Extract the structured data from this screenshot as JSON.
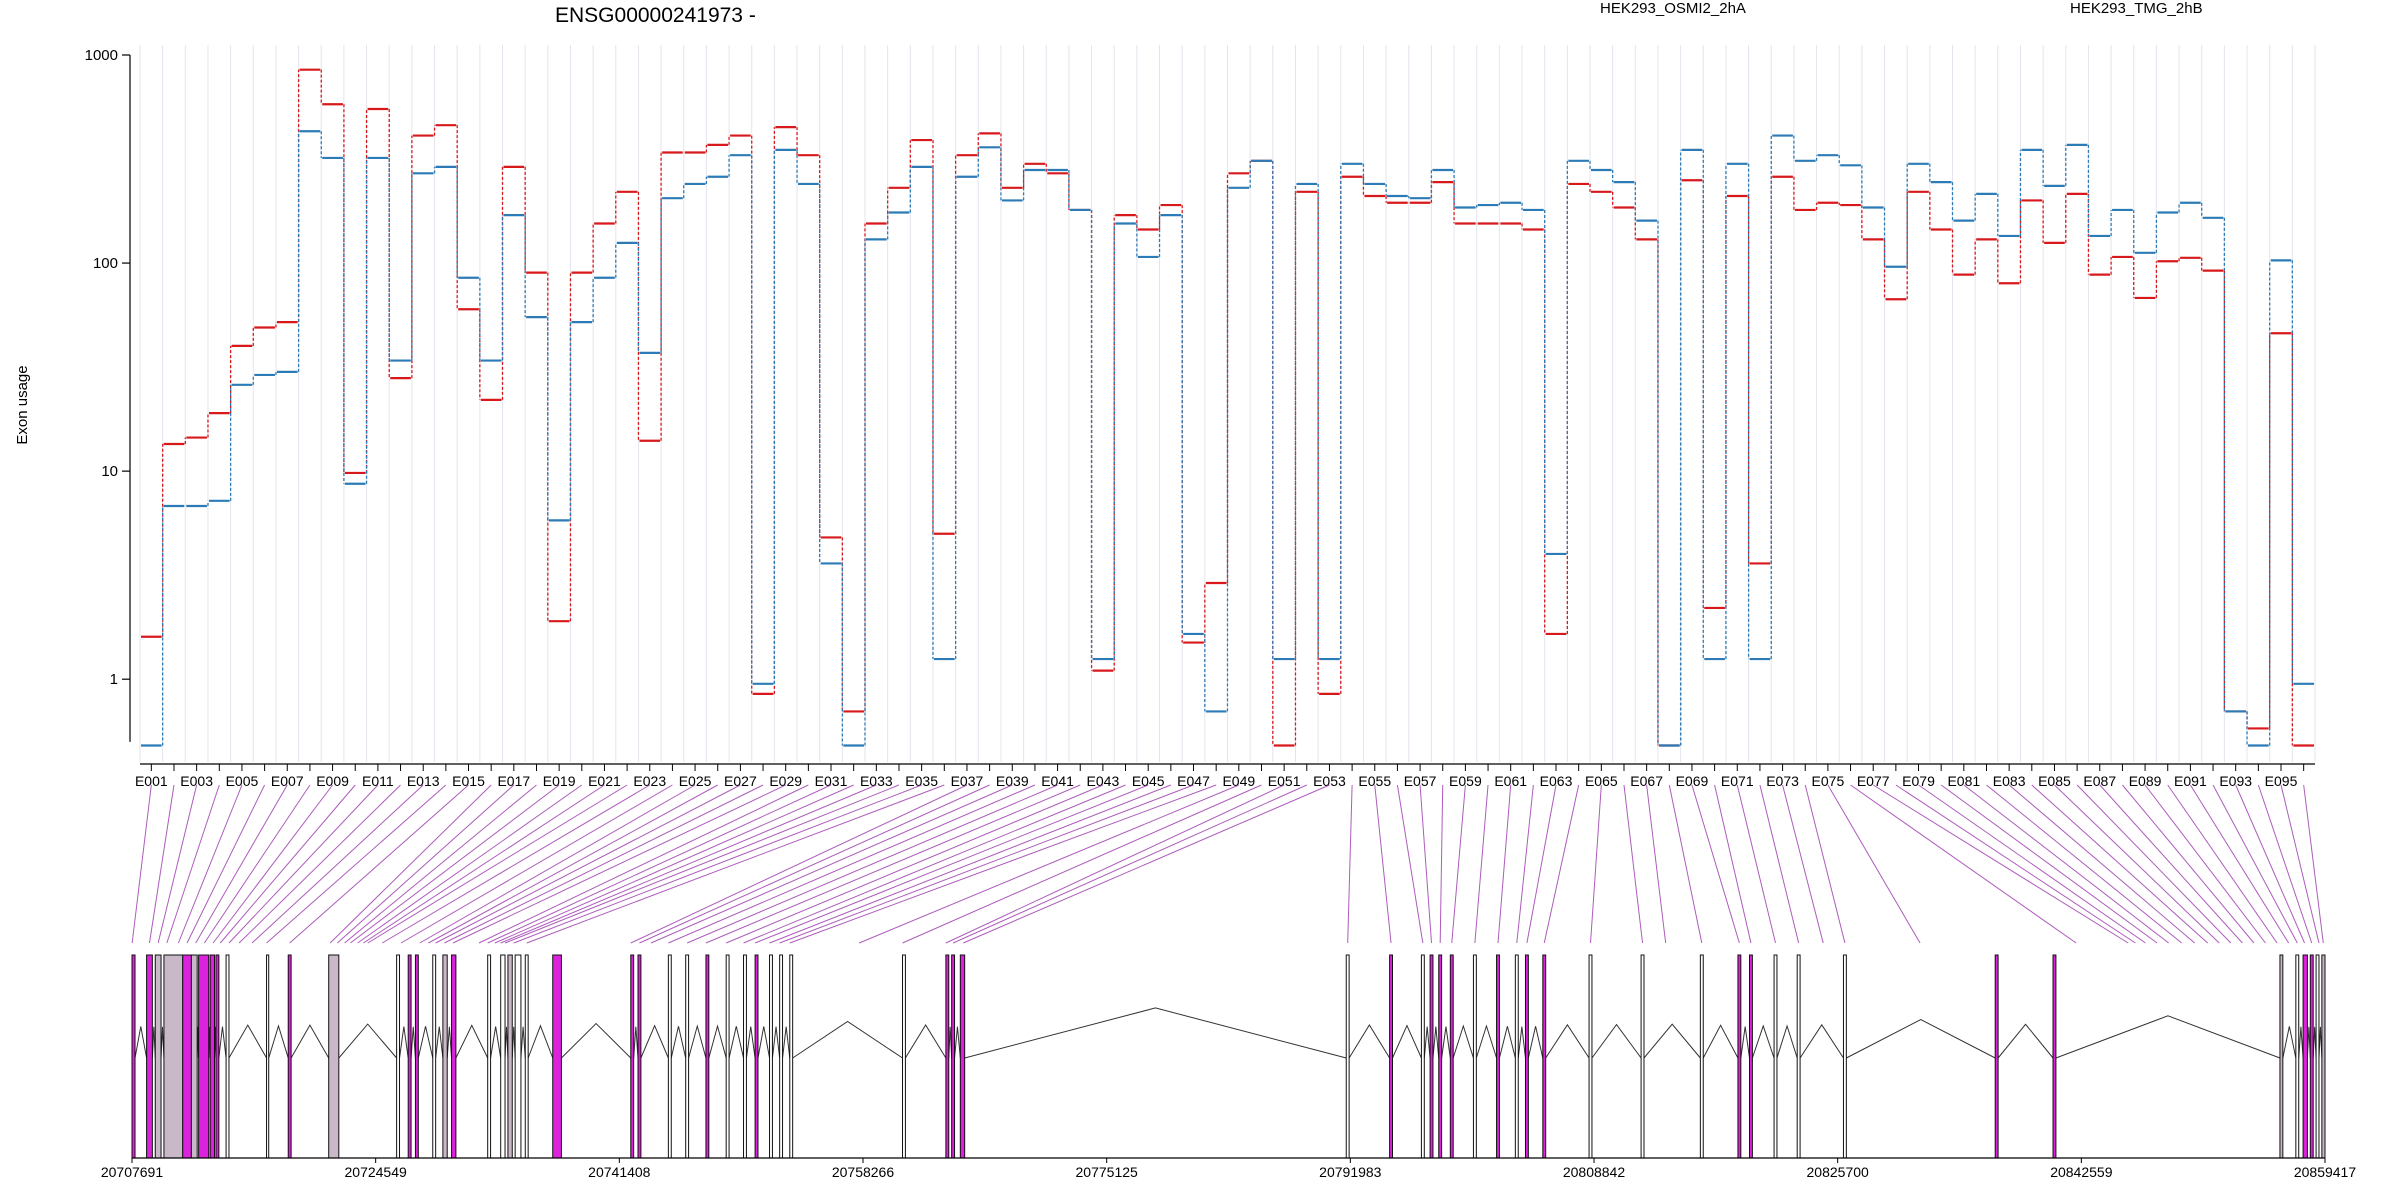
{
  "chart_data": {
    "type": "line",
    "title": "ENSG00000241973 -",
    "ylabel": "Exon usage",
    "yscale": "log",
    "ylim": [
      0.4,
      1000
    ],
    "yticks": [
      "1",
      "10",
      "100",
      "1000"
    ],
    "ytick_values": [
      1,
      10,
      100,
      1000
    ],
    "grid": "vertical lines at every exon",
    "legend_position": "top",
    "colors": {
      "a": "#d7191c",
      "b": "#2c7bb6",
      "exon_highlight": "#dd22dd",
      "exon_grey": "#c8b8c8",
      "connector": "#9933aa",
      "grid": "#e4e4ee"
    },
    "exons": [
      "E001",
      "E002",
      "E003",
      "E004",
      "E005",
      "E006",
      "E007",
      "E008",
      "E009",
      "E010",
      "E011",
      "E012",
      "E013",
      "E014",
      "E015",
      "E016",
      "E017",
      "E018",
      "E019",
      "E020",
      "E021",
      "E022",
      "E023",
      "E024",
      "E025",
      "E026",
      "E027",
      "E028",
      "E029",
      "E030",
      "E031",
      "E032",
      "E033",
      "E034",
      "E035",
      "E036",
      "E037",
      "E038",
      "E039",
      "E040",
      "E041",
      "E042",
      "E043",
      "E044",
      "E045",
      "E046",
      "E047",
      "E048",
      "E049",
      "E050",
      "E051",
      "E052",
      "E053",
      "E054",
      "E055",
      "E056",
      "E057",
      "E058",
      "E059",
      "E060",
      "E061",
      "E062",
      "E063",
      "E064",
      "E065",
      "E066",
      "E067",
      "E068",
      "E069",
      "E070",
      "E071",
      "E072",
      "E073",
      "E074",
      "E075",
      "E076",
      "E077",
      "E078",
      "E079",
      "E080",
      "E081",
      "E082",
      "E083",
      "E084",
      "E085",
      "E086",
      "E087",
      "E088",
      "E089",
      "E090",
      "E091",
      "E092",
      "E093",
      "E094",
      "E095",
      "E096"
    ],
    "x_tick_labels": [
      "E001",
      "E003",
      "E005",
      "E007",
      "E009",
      "E011",
      "E013",
      "E015",
      "E017",
      "E019",
      "E021",
      "E023",
      "E025",
      "E027",
      "E029",
      "E031",
      "E033",
      "E035",
      "E037",
      "E039",
      "E041",
      "E043",
      "E045",
      "E047",
      "E049",
      "E051",
      "E053",
      "E055",
      "E057",
      "E059",
      "E061",
      "E063",
      "E065",
      "E067",
      "E069",
      "E071",
      "E073",
      "E075",
      "E077",
      "E079",
      "E081",
      "E083",
      "E085",
      "E087",
      "E089",
      "E091",
      "E093",
      "E095"
    ],
    "series": [
      {
        "name": "HEK293_OSMI2_2hA",
        "values": [
          1.6,
          13.5,
          14.5,
          19,
          40,
          49,
          52,
          850,
          580,
          9.8,
          550,
          28,
          410,
          460,
          60,
          22,
          290,
          90,
          1.9,
          90,
          155,
          220,
          14,
          340,
          340,
          370,
          410,
          0.85,
          450,
          330,
          4.8,
          0.7,
          155,
          230,
          390,
          5,
          330,
          420,
          230,
          300,
          270,
          180,
          1.1,
          170,
          145,
          190,
          1.5,
          2.9,
          270,
          310,
          0.48,
          220,
          0.85,
          260,
          210,
          195,
          195,
          245,
          155,
          155,
          155,
          145,
          1.65,
          240,
          220,
          185,
          130,
          0.48,
          250,
          2.2,
          210,
          3.6,
          260,
          180,
          195,
          190,
          130,
          67,
          220,
          145,
          88,
          130,
          80,
          200,
          125,
          215,
          88,
          107,
          68,
          102,
          106,
          92,
          0.7,
          0.58,
          46,
          0.48
        ]
      },
      {
        "name": "HEK293_TMG_2hB",
        "values": [
          0.48,
          6.8,
          6.8,
          7.2,
          26,
          29,
          30,
          430,
          320,
          8.7,
          320,
          34,
          270,
          290,
          85,
          34,
          170,
          55,
          5.8,
          52,
          85,
          125,
          37,
          205,
          240,
          260,
          330,
          0.95,
          350,
          240,
          3.6,
          0.48,
          130,
          175,
          290,
          1.25,
          260,
          360,
          200,
          280,
          280,
          180,
          1.25,
          155,
          107,
          170,
          1.65,
          0.7,
          230,
          310,
          1.25,
          240,
          1.25,
          300,
          240,
          210,
          205,
          280,
          185,
          190,
          195,
          180,
          4,
          310,
          280,
          245,
          160,
          0.48,
          350,
          1.25,
          300,
          1.25,
          410,
          310,
          330,
          295,
          185,
          96,
          300,
          245,
          160,
          215,
          135,
          350,
          235,
          370,
          135,
          180,
          112,
          175,
          195,
          165,
          0.7,
          0.48,
          103,
          0.95
        ]
      }
    ],
    "genome_ticks": [
      "20707691",
      "20724549",
      "20741408",
      "20758266",
      "20775125",
      "20791983",
      "20808842",
      "20825700",
      "20842559",
      "20859417"
    ],
    "genome_tick_values": [
      20707691,
      20724549,
      20741408,
      20758266,
      20775125,
      20791983,
      20808842,
      20825700,
      20842559,
      20859417
    ],
    "exon_genomic_positions": [
      20707700,
      20708900,
      20709500,
      20710100,
      20710900,
      20711500,
      20712100,
      20712700,
      20713300,
      20713800,
      20714400,
      20715100,
      20716000,
      20717000,
      20718600,
      20721400,
      20721900,
      20722400,
      20722800,
      20723300,
      20723700,
      20724000,
      20725000,
      20726300,
      20727600,
      20728200,
      20728700,
      20729300,
      20729900,
      20731700,
      20732300,
      20732800,
      20733200,
      20733500,
      20734100,
      20735000,
      20742200,
      20742800,
      20743600,
      20744800,
      20746100,
      20747400,
      20748800,
      20750000,
      20750800,
      20751800,
      20752500,
      20753200,
      20758000,
      20761000,
      20764000,
      20764500,
      20765200,
      20791800,
      20794800,
      20797000,
      20797600,
      20798200,
      20799000,
      20800600,
      20802200,
      20803500,
      20804200,
      20805400,
      20808600,
      20812200,
      20813800,
      20816300,
      20818900,
      20819700,
      20821400,
      20823000,
      20824700,
      20826200,
      20831400,
      20842200,
      20845800,
      20846300,
      20847000,
      20847800,
      20848600,
      20849500,
      20850400,
      20851300,
      20852100,
      20852900,
      20853700,
      20854500,
      20855300,
      20856100,
      20856900,
      20857500,
      20858000,
      20858500,
      20859000,
      20859300
    ],
    "gene_model_exons": [
      {
        "start": 20707691,
        "end": 20707900,
        "color": "magenta"
      },
      {
        "start": 20708700,
        "end": 20709100,
        "color": "magenta"
      },
      {
        "start": 20709300,
        "end": 20709700,
        "color": "grey"
      },
      {
        "start": 20709900,
        "end": 20711200,
        "color": "grey"
      },
      {
        "start": 20711200,
        "end": 20711800,
        "color": "magenta"
      },
      {
        "start": 20711800,
        "end": 20712200,
        "color": "grey"
      },
      {
        "start": 20712300,
        "end": 20713000,
        "color": "magenta"
      },
      {
        "start": 20713100,
        "end": 20713400,
        "color": "magenta"
      },
      {
        "start": 20713500,
        "end": 20713700,
        "color": "magenta"
      },
      {
        "start": 20714200,
        "end": 20714400,
        "color": "black"
      },
      {
        "start": 20717000,
        "end": 20717150,
        "color": "black"
      },
      {
        "start": 20718500,
        "end": 20718700,
        "color": "magenta"
      },
      {
        "start": 20721300,
        "end": 20722000,
        "color": "grey"
      },
      {
        "start": 20726000,
        "end": 20726200,
        "color": "black"
      },
      {
        "start": 20726800,
        "end": 20727000,
        "color": "magenta"
      },
      {
        "start": 20727300,
        "end": 20727500,
        "color": "magenta"
      },
      {
        "start": 20728500,
        "end": 20728700,
        "color": "black"
      },
      {
        "start": 20729200,
        "end": 20729500,
        "color": "grey"
      },
      {
        "start": 20729800,
        "end": 20730100,
        "color": "magenta"
      },
      {
        "start": 20732300,
        "end": 20732500,
        "color": "black"
      },
      {
        "start": 20733200,
        "end": 20733500,
        "color": "black"
      },
      {
        "start": 20733700,
        "end": 20734000,
        "color": "grey"
      },
      {
        "start": 20734200,
        "end": 20734600,
        "color": "black"
      },
      {
        "start": 20734900,
        "end": 20735100,
        "color": "black"
      },
      {
        "start": 20736800,
        "end": 20737400,
        "color": "magenta"
      },
      {
        "start": 20742200,
        "end": 20742400,
        "color": "magenta"
      },
      {
        "start": 20742700,
        "end": 20742900,
        "color": "magenta"
      },
      {
        "start": 20744800,
        "end": 20745000,
        "color": "black"
      },
      {
        "start": 20746000,
        "end": 20746200,
        "color": "black"
      },
      {
        "start": 20747400,
        "end": 20747600,
        "color": "magenta"
      },
      {
        "start": 20748800,
        "end": 20749000,
        "color": "black"
      },
      {
        "start": 20750000,
        "end": 20750200,
        "color": "black"
      },
      {
        "start": 20750800,
        "end": 20751000,
        "color": "magenta"
      },
      {
        "start": 20751800,
        "end": 20752000,
        "color": "black"
      },
      {
        "start": 20752500,
        "end": 20752700,
        "color": "black"
      },
      {
        "start": 20753200,
        "end": 20753400,
        "color": "black"
      },
      {
        "start": 20761000,
        "end": 20761200,
        "color": "black"
      },
      {
        "start": 20764000,
        "end": 20764200,
        "color": "magenta"
      },
      {
        "start": 20764400,
        "end": 20764600,
        "color": "magenta"
      },
      {
        "start": 20765000,
        "end": 20765300,
        "color": "magenta"
      },
      {
        "start": 20791700,
        "end": 20791900,
        "color": "black"
      },
      {
        "start": 20794700,
        "end": 20794900,
        "color": "magenta"
      },
      {
        "start": 20796900,
        "end": 20797100,
        "color": "black"
      },
      {
        "start": 20797500,
        "end": 20797700,
        "color": "magenta"
      },
      {
        "start": 20798100,
        "end": 20798300,
        "color": "magenta"
      },
      {
        "start": 20798900,
        "end": 20799100,
        "color": "magenta"
      },
      {
        "start": 20800500,
        "end": 20800700,
        "color": "black"
      },
      {
        "start": 20802100,
        "end": 20802300,
        "color": "magenta"
      },
      {
        "start": 20803400,
        "end": 20803600,
        "color": "black"
      },
      {
        "start": 20804100,
        "end": 20804300,
        "color": "magenta"
      },
      {
        "start": 20805300,
        "end": 20805500,
        "color": "magenta"
      },
      {
        "start": 20808500,
        "end": 20808700,
        "color": "black"
      },
      {
        "start": 20812100,
        "end": 20812300,
        "color": "black"
      },
      {
        "start": 20816200,
        "end": 20816400,
        "color": "black"
      },
      {
        "start": 20818800,
        "end": 20819000,
        "color": "magenta"
      },
      {
        "start": 20819600,
        "end": 20819800,
        "color": "magenta"
      },
      {
        "start": 20821300,
        "end": 20821500,
        "color": "black"
      },
      {
        "start": 20822900,
        "end": 20823100,
        "color": "black"
      },
      {
        "start": 20826100,
        "end": 20826300,
        "color": "black"
      },
      {
        "start": 20836600,
        "end": 20836800,
        "color": "magenta"
      },
      {
        "start": 20840600,
        "end": 20840800,
        "color": "magenta"
      },
      {
        "start": 20856300,
        "end": 20856500,
        "color": "grey"
      },
      {
        "start": 20857400,
        "end": 20857600,
        "color": "black"
      },
      {
        "start": 20857900,
        "end": 20858200,
        "color": "magenta"
      },
      {
        "start": 20858400,
        "end": 20858600,
        "color": "magenta"
      },
      {
        "start": 20858800,
        "end": 20859000,
        "color": "black"
      },
      {
        "start": 20859200,
        "end": 20859417,
        "color": "grey"
      }
    ]
  }
}
